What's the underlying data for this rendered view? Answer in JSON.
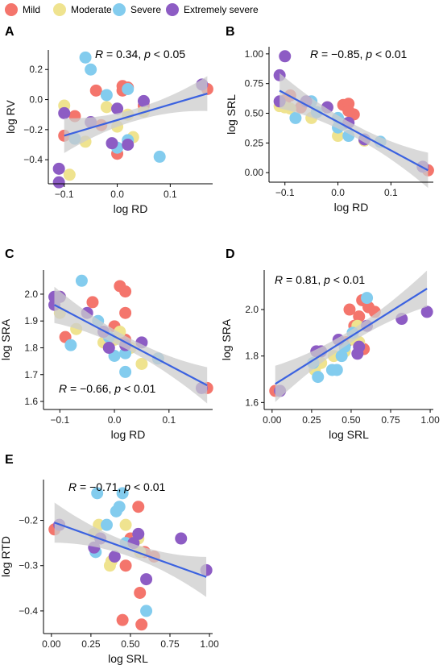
{
  "legend": {
    "items": [
      {
        "label": "Mild",
        "color": "#f4756c"
      },
      {
        "label": "Moderate",
        "color": "#efe38f"
      },
      {
        "label": "Severe",
        "color": "#83ccee"
      },
      {
        "label": "Extremely severe",
        "color": "#8d5cc4"
      }
    ]
  },
  "style": {
    "regression_line_color": "#3b62e0",
    "ci_band_color": "#cccccc"
  },
  "chart_data": [
    {
      "type": "scatter",
      "panel": "A",
      "xlabel": "log RD",
      "ylabel": "log RV",
      "xlim": [
        -0.13,
        0.18
      ],
      "ylim": [
        -0.56,
        0.33
      ],
      "xticks": [
        -0.1,
        0.0,
        0.1
      ],
      "xtick_labels": [
        "−0.1",
        "0.0",
        "0.1"
      ],
      "yticks": [
        -0.4,
        -0.2,
        0.0,
        0.2
      ],
      "ytick_labels": [
        "−0.4",
        "−0.2",
        "0.0",
        "0.2"
      ],
      "annotation": {
        "r_part": "R = 0.34,",
        "p_italic": "p",
        "p_rest": "< 0.05"
      },
      "regression": {
        "x": [
          -0.1,
          0.17
        ],
        "y": [
          -0.24,
          0.04
        ]
      },
      "series": [
        {
          "name": "Mild",
          "x": [
            -0.08,
            -0.04,
            -0.03,
            0.0,
            0.01,
            0.02,
            0.01,
            0.17,
            0.05,
            -0.1
          ],
          "y": [
            -0.11,
            0.06,
            -0.17,
            -0.36,
            0.09,
            0.08,
            0.06,
            0.07,
            -0.04,
            -0.24
          ]
        },
        {
          "name": "Moderate",
          "x": [
            -0.1,
            -0.09,
            -0.06,
            -0.02,
            0.0,
            0.02,
            0.03,
            0.05
          ],
          "y": [
            -0.04,
            -0.5,
            -0.28,
            -0.05,
            -0.18,
            -0.1,
            -0.25,
            -0.08
          ]
        },
        {
          "name": "Severe",
          "x": [
            -0.06,
            -0.05,
            -0.02,
            0.0,
            0.02,
            0.02,
            0.08,
            -0.08
          ],
          "y": [
            0.28,
            0.2,
            0.03,
            -0.32,
            -0.27,
            0.07,
            -0.38,
            -0.26
          ]
        },
        {
          "name": "Extremely severe",
          "x": [
            -0.11,
            -0.11,
            -0.1,
            -0.05,
            0.0,
            -0.01,
            0.05,
            0.16,
            0.02
          ],
          "y": [
            -0.46,
            -0.55,
            -0.09,
            -0.15,
            -0.06,
            -0.29,
            -0.01,
            0.1,
            -0.3
          ]
        }
      ]
    },
    {
      "type": "scatter",
      "panel": "B",
      "xlabel": "log RD",
      "ylabel": "log SRL",
      "xlim": [
        -0.13,
        0.18
      ],
      "ylim": [
        -0.08,
        1.06
      ],
      "xticks": [
        -0.1,
        0.0,
        0.1
      ],
      "xtick_labels": [
        "−0.1",
        "0.0",
        "0.1"
      ],
      "yticks": [
        0.0,
        0.25,
        0.5,
        0.75,
        1.0
      ],
      "ytick_labels": [
        "0.00",
        "0.25",
        "0.50",
        "0.75",
        "1.00"
      ],
      "annotation": {
        "r_part": "R = −0.85,",
        "p_italic": "p",
        "p_rest": "< 0.01"
      },
      "regression": {
        "x": [
          -0.11,
          0.17
        ],
        "y": [
          0.69,
          0.02
        ]
      },
      "series": [
        {
          "name": "Mild",
          "x": [
            -0.09,
            -0.07,
            -0.02,
            0.01,
            0.02,
            0.02,
            0.03,
            0.17,
            -0.1
          ],
          "y": [
            0.65,
            0.55,
            0.55,
            0.57,
            0.58,
            0.52,
            0.49,
            0.02,
            0.61
          ]
        },
        {
          "name": "Moderate",
          "x": [
            -0.11,
            -0.1,
            -0.09,
            -0.05,
            0.0,
            0.01,
            0.05
          ],
          "y": [
            0.56,
            0.55,
            0.54,
            0.46,
            0.31,
            0.41,
            0.27
          ]
        },
        {
          "name": "Severe",
          "x": [
            -0.05,
            -0.08,
            -0.04,
            0.0,
            0.0,
            0.01,
            0.02,
            0.08
          ],
          "y": [
            0.6,
            0.46,
            0.51,
            0.46,
            0.38,
            0.41,
            0.31,
            0.26
          ]
        },
        {
          "name": "Extremely severe",
          "x": [
            -0.11,
            -0.11,
            -0.1,
            -0.06,
            -0.02,
            0.02,
            0.05,
            0.16
          ],
          "y": [
            0.82,
            0.6,
            0.98,
            0.6,
            0.55,
            0.42,
            0.28,
            0.05
          ]
        }
      ]
    },
    {
      "type": "scatter",
      "panel": "C",
      "xlabel": "log RD",
      "ylabel": "log SRA",
      "xlim": [
        -0.13,
        0.18
      ],
      "ylim": [
        1.57,
        2.09
      ],
      "xticks": [
        -0.1,
        0.0,
        0.1
      ],
      "xtick_labels": [
        "−0.1",
        "0.0",
        "0.1"
      ],
      "yticks": [
        1.6,
        1.7,
        1.8,
        1.9,
        2.0
      ],
      "ytick_labels": [
        "1.6",
        "1.7",
        "1.8",
        "1.9",
        "2.0"
      ],
      "annotation": {
        "r_part": "R = −0.66,",
        "p_italic": "p",
        "p_rest": "< 0.01"
      },
      "regression": {
        "x": [
          -0.11,
          0.17
        ],
        "y": [
          1.96,
          1.66
        ]
      },
      "series": [
        {
          "name": "Mild",
          "x": [
            -0.1,
            -0.09,
            -0.04,
            0.0,
            0.01,
            0.02,
            0.02,
            0.02,
            0.17
          ],
          "y": [
            1.99,
            1.84,
            1.97,
            1.88,
            2.03,
            2.01,
            1.93,
            1.83,
            1.65
          ]
        },
        {
          "name": "Moderate",
          "x": [
            -0.1,
            -0.07,
            -0.02,
            0.0,
            0.01,
            0.03,
            0.05
          ],
          "y": [
            1.93,
            1.87,
            1.82,
            1.83,
            1.86,
            1.8,
            1.74
          ]
        },
        {
          "name": "Severe",
          "x": [
            -0.08,
            -0.06,
            -0.03,
            -0.01,
            0.0,
            0.02,
            0.02,
            0.08
          ],
          "y": [
            1.81,
            2.05,
            1.9,
            1.84,
            1.77,
            1.71,
            1.78,
            1.76
          ]
        },
        {
          "name": "Extremely severe",
          "x": [
            -0.11,
            -0.1,
            -0.05,
            -0.02,
            -0.01,
            0.02,
            0.05,
            0.16,
            -0.11
          ],
          "y": [
            1.96,
            1.99,
            1.93,
            1.86,
            1.8,
            1.81,
            1.82,
            1.65,
            1.99
          ]
        }
      ]
    },
    {
      "type": "scatter",
      "panel": "D",
      "xlabel": "log SRL",
      "ylabel": "log SRA",
      "xlim": [
        -0.05,
        1.02
      ],
      "ylim": [
        1.57,
        2.17
      ],
      "xticks": [
        0.0,
        0.25,
        0.5,
        0.75,
        1.0
      ],
      "xtick_labels": [
        "0.00",
        "0.25",
        "0.50",
        "0.75",
        "1.00"
      ],
      "yticks": [
        1.6,
        1.8,
        2.0
      ],
      "ytick_labels": [
        "1.6",
        "1.8",
        "2.0"
      ],
      "annotation": {
        "r_part": "R = 0.81,",
        "p_italic": "p",
        "p_rest": "< 0.01"
      },
      "regression": {
        "x": [
          0.02,
          0.98
        ],
        "y": [
          1.68,
          2.09
        ]
      },
      "series": [
        {
          "name": "Mild",
          "x": [
            0.02,
            0.49,
            0.52,
            0.55,
            0.57,
            0.58,
            0.65,
            0.61,
            0.47
          ],
          "y": [
            1.65,
            2.0,
            1.93,
            1.97,
            2.04,
            1.83,
            1.99,
            2.01,
            1.86
          ]
        },
        {
          "name": "Moderate",
          "x": [
            0.27,
            0.31,
            0.39,
            0.46,
            0.52,
            0.55,
            0.54
          ],
          "y": [
            1.74,
            1.77,
            1.8,
            1.82,
            1.87,
            1.86,
            1.93
          ]
        },
        {
          "name": "Severe",
          "x": [
            0.26,
            0.29,
            0.38,
            0.41,
            0.44,
            0.46,
            0.51,
            0.6
          ],
          "y": [
            1.77,
            1.71,
            1.74,
            1.74,
            1.8,
            1.84,
            1.9,
            2.05
          ]
        },
        {
          "name": "Extremely severe",
          "x": [
            0.05,
            0.28,
            0.31,
            0.42,
            0.54,
            0.6,
            0.82,
            0.98,
            0.55
          ],
          "y": [
            1.65,
            1.82,
            1.82,
            1.87,
            1.81,
            1.93,
            1.96,
            1.99,
            1.84
          ]
        }
      ]
    },
    {
      "type": "scatter",
      "panel": "E",
      "xlabel": "log SRL",
      "ylabel": "log RTD",
      "xlim": [
        -0.05,
        1.02
      ],
      "ylim": [
        -0.45,
        -0.11
      ],
      "xticks": [
        0.0,
        0.25,
        0.5,
        0.75,
        1.0
      ],
      "xtick_labels": [
        "0.00",
        "0.25",
        "0.50",
        "0.75",
        "1.00"
      ],
      "yticks": [
        -0.4,
        -0.3,
        -0.2
      ],
      "ytick_labels": [
        "−0.4",
        "−0.3",
        "−0.2"
      ],
      "annotation": {
        "r_part": "R = −0.71,",
        "p_italic": "p",
        "p_rest": "< 0.01"
      },
      "regression": {
        "x": [
          0.02,
          0.98
        ],
        "y": [
          -0.205,
          -0.325
        ]
      },
      "series": [
        {
          "name": "Mild",
          "x": [
            0.02,
            0.45,
            0.47,
            0.55,
            0.56,
            0.57,
            0.59,
            0.65,
            0.5
          ],
          "y": [
            -0.22,
            -0.42,
            -0.3,
            -0.17,
            -0.36,
            -0.43,
            -0.27,
            -0.28,
            -0.24
          ]
        },
        {
          "name": "Moderate",
          "x": [
            0.27,
            0.3,
            0.37,
            0.38,
            0.47,
            0.55,
            0.56
          ],
          "y": [
            -0.23,
            -0.21,
            -0.3,
            -0.29,
            -0.21,
            -0.24,
            -0.27
          ]
        },
        {
          "name": "Severe",
          "x": [
            0.28,
            0.29,
            0.35,
            0.41,
            0.43,
            0.45,
            0.47,
            0.6
          ],
          "y": [
            -0.27,
            -0.14,
            -0.21,
            -0.18,
            -0.17,
            -0.14,
            -0.25,
            -0.4
          ]
        },
        {
          "name": "Extremely severe",
          "x": [
            0.05,
            0.27,
            0.31,
            0.4,
            0.52,
            0.6,
            0.82,
            0.98,
            0.55
          ],
          "y": [
            -0.21,
            -0.26,
            -0.24,
            -0.28,
            -0.25,
            -0.33,
            -0.24,
            -0.31,
            -0.23
          ]
        }
      ]
    }
  ]
}
